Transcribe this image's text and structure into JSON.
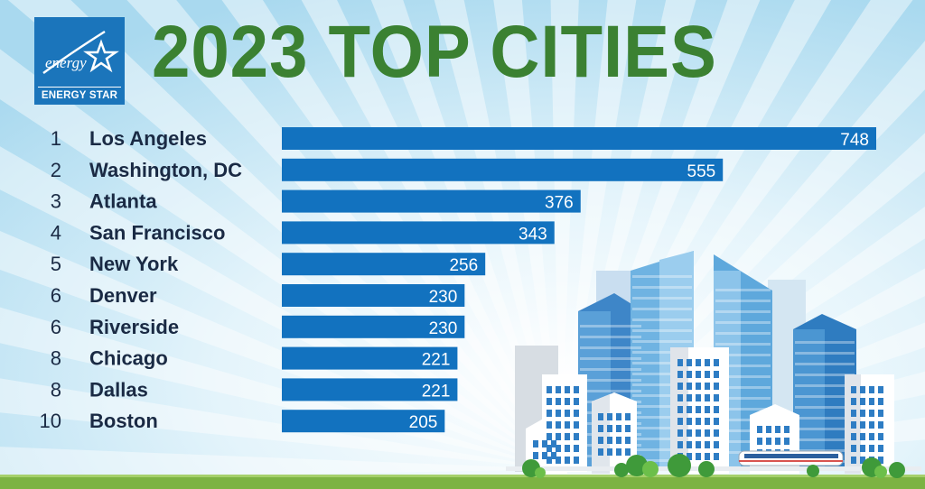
{
  "title": "2023 TOP CITIES",
  "logo": {
    "script_text": "energy",
    "brand_text": "ENERGY STAR"
  },
  "colors": {
    "bar": "#1272bf",
    "title": "#3b8132",
    "text": "#1a2a44",
    "sky": "#bfe3f3"
  },
  "chart_data": {
    "type": "bar",
    "orientation": "horizontal",
    "title": "2023 TOP CITIES",
    "ranks": [
      "1",
      "2",
      "3",
      "4",
      "5",
      "6",
      "6",
      "8",
      "8",
      "10"
    ],
    "categories": [
      "Los Angeles",
      "Washington, DC",
      "Atlanta",
      "San Francisco",
      "New York",
      "Denver",
      "Riverside",
      "Chicago",
      "Dallas",
      "Boston"
    ],
    "values": [
      748,
      555,
      376,
      343,
      256,
      230,
      230,
      221,
      221,
      205
    ],
    "xlim": [
      0,
      748
    ],
    "grid": false,
    "legend": "none"
  }
}
